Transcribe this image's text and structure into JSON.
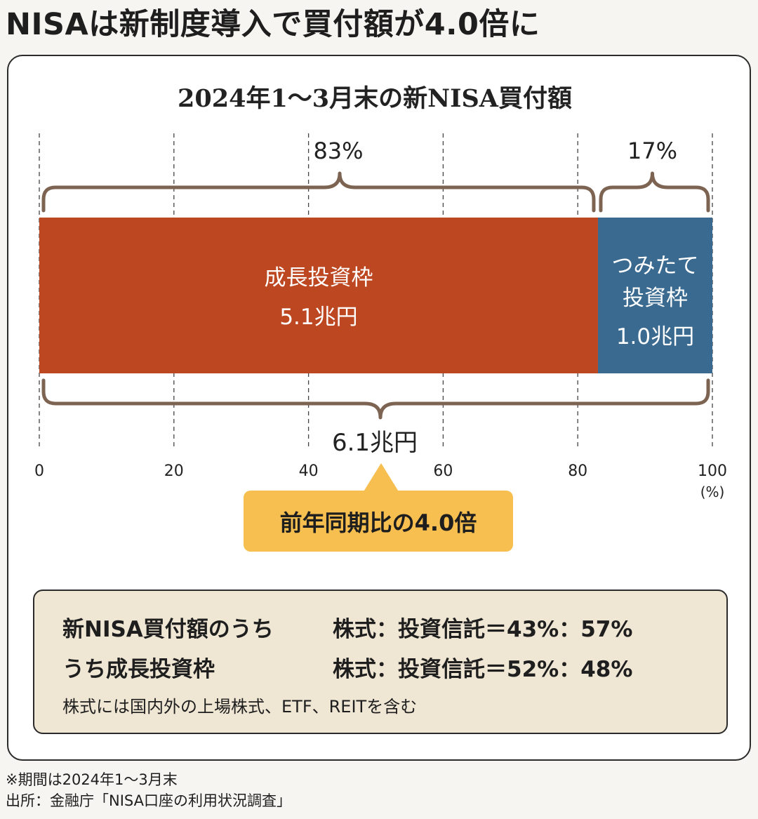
{
  "headline": "NISAは新制度導入で買付額が4.0倍に",
  "colors": {
    "growth": "#bd4721",
    "tsumitate": "#3a6a90",
    "brace": "#7d6351",
    "callout": "#f6bf4f",
    "note_bg": "#efe6d4"
  },
  "chart_data": {
    "type": "bar",
    "orientation": "horizontal-stacked",
    "title": "2024年1〜3月末の新NISA買付額",
    "unit": "(%)",
    "xlim": [
      0,
      100
    ],
    "ticks": [
      "0",
      "20",
      "40",
      "60",
      "80",
      "100"
    ],
    "tick_values": [
      0,
      20,
      40,
      60,
      80,
      100
    ],
    "grid": true,
    "segments": [
      {
        "name": "成長投資枠",
        "label_lines": [
          "成長投資枠",
          "5.1兆円"
        ],
        "value_trillion_yen": 5.1,
        "percent": 83,
        "percent_label": "83%"
      },
      {
        "name": "つみたて投資枠",
        "label_lines": [
          "つみたて",
          "投資枠",
          "1.0兆円"
        ],
        "value_trillion_yen": 1.0,
        "percent": 17,
        "percent_label": "17%"
      }
    ],
    "total_label": "6.1兆円",
    "total_trillion_yen": 6.1
  },
  "callout": "前年同期比の4.0倍",
  "notes": {
    "row1_left": "新NISA買付額のうち",
    "row1_right": "株式：投資信託＝43%：57%",
    "row2_left": "うち成長投資枠",
    "row2_right": "株式：投資信託＝52%：48%",
    "small": "株式には国内外の上場株式、ETF、REITを含む"
  },
  "footnotes": {
    "period": "※期間は2024年1〜3月末",
    "source": "出所：金融庁「NISA口座の利用状況調査」"
  }
}
